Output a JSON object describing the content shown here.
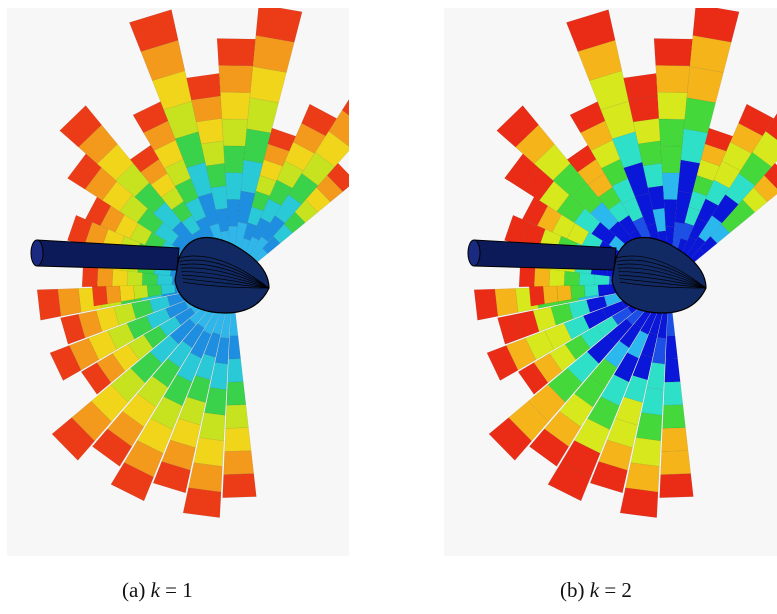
{
  "figure": {
    "panels": [
      {
        "id": "a",
        "label": "(a)",
        "variable": "k",
        "relation": " = ",
        "value": "1",
        "fan_colors": [
          "#2fb6ea",
          "#1e8fe0",
          "#29c9d8",
          "#3ad24a",
          "#c7e21f",
          "#f1d51a",
          "#f39a1c",
          "#ec3b17"
        ]
      },
      {
        "id": "b",
        "label": "(b)",
        "variable": "k",
        "relation": " = ",
        "value": "2",
        "fan_colors": [
          "#0a16d8",
          "#1b4fe6",
          "#2bb8ee",
          "#2fe0c8",
          "#45d83a",
          "#d7e81c",
          "#f5b41a",
          "#ea2c16"
        ]
      }
    ]
  }
}
